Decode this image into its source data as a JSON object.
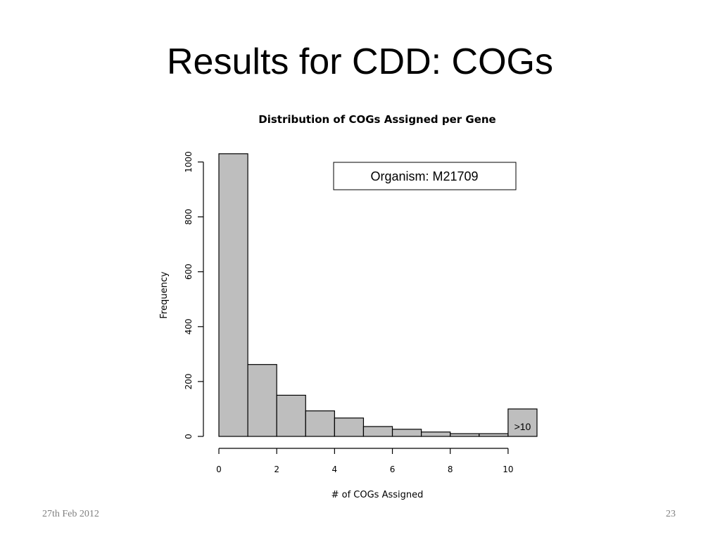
{
  "slide": {
    "title": "Results for CDD: COGs",
    "footer_date": "27th Feb 2012",
    "page_number": "23"
  },
  "chart_data": {
    "type": "bar",
    "title": "Distribution of COGs Assigned per Gene",
    "xlabel": "# of COGs Assigned",
    "ylabel": "Frequency",
    "bins": [
      {
        "start": 0,
        "end": 1,
        "value": 1030
      },
      {
        "start": 1,
        "end": 2,
        "value": 262
      },
      {
        "start": 2,
        "end": 3,
        "value": 150
      },
      {
        "start": 3,
        "end": 4,
        "value": 93
      },
      {
        "start": 4,
        "end": 5,
        "value": 67
      },
      {
        "start": 5,
        "end": 6,
        "value": 36
      },
      {
        "start": 6,
        "end": 7,
        "value": 26
      },
      {
        "start": 7,
        "end": 8,
        "value": 16
      },
      {
        "start": 8,
        "end": 9,
        "value": 10
      },
      {
        "start": 9,
        "end": 10,
        "value": 10
      },
      {
        "start": 10,
        "end": 11,
        "value": 100,
        "label": ">10"
      }
    ],
    "xticks": [
      0,
      2,
      4,
      6,
      8,
      10
    ],
    "yticks": [
      0,
      200,
      400,
      600,
      800,
      1000
    ],
    "xlim": [
      0,
      11
    ],
    "ylim": [
      0,
      1000
    ],
    "annotation": "Organism: M21709",
    "colors": {
      "bar_fill": "#bebebe",
      "bar_stroke": "#000000"
    }
  }
}
